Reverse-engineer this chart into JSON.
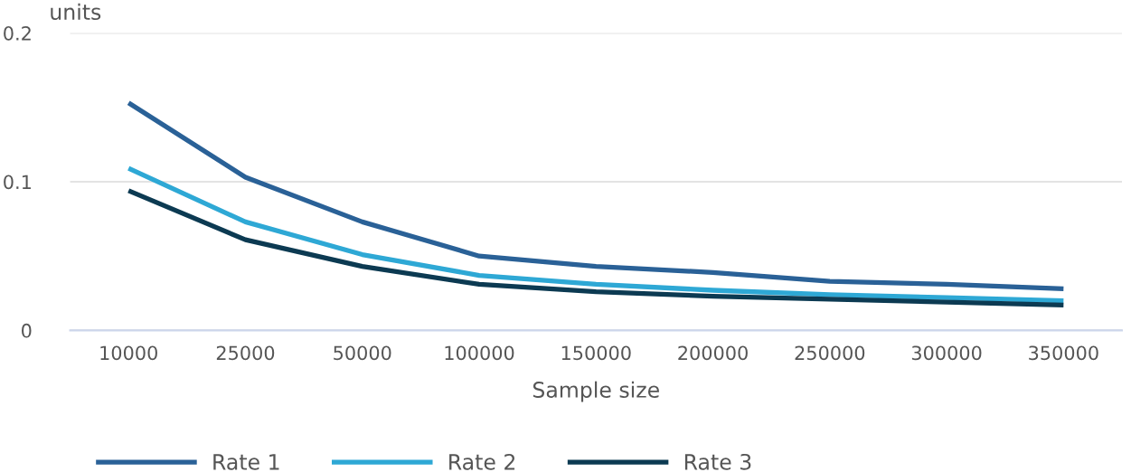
{
  "chart_data": {
    "type": "line",
    "xlabel": "Sample size",
    "ylabel": "units",
    "categories": [
      "10000",
      "25000",
      "50000",
      "100000",
      "150000",
      "200000",
      "250000",
      "300000",
      "350000"
    ],
    "series": [
      {
        "name": "Rate 1",
        "color": "#2a6197",
        "values": [
          0.153,
          0.103,
          0.073,
          0.05,
          0.043,
          0.039,
          0.033,
          0.031,
          0.028
        ]
      },
      {
        "name": "Rate 2",
        "color": "#2ea8d5",
        "values": [
          0.109,
          0.073,
          0.051,
          0.037,
          0.031,
          0.027,
          0.024,
          0.022,
          0.02
        ]
      },
      {
        "name": "Rate 3",
        "color": "#0c3a52",
        "values": [
          0.094,
          0.061,
          0.043,
          0.031,
          0.026,
          0.023,
          0.021,
          0.019,
          0.017
        ]
      }
    ],
    "ylim": [
      0,
      0.2
    ],
    "yticks": [
      0,
      0.1,
      0.2
    ],
    "grid": "y",
    "legend": "bottom",
    "line_style": "solid"
  }
}
